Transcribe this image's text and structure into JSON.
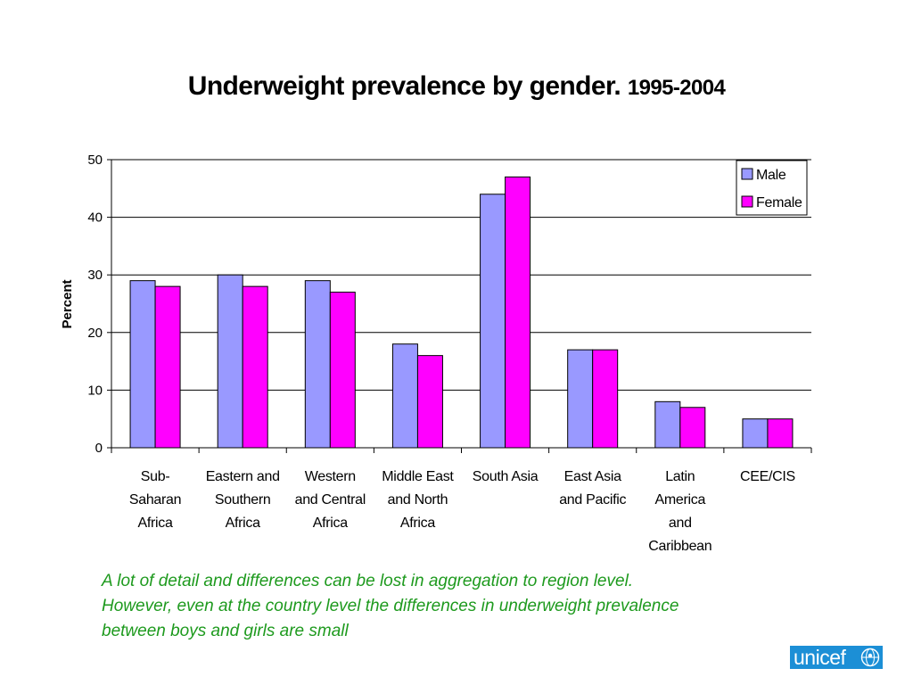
{
  "slide": {
    "title_main": "Underweight prevalence by gender.",
    "title_range": "1995-2004",
    "caption_lines": [
      "A lot of detail and differences can be lost in aggregation to region level.",
      "However, even at the country level the differences in underweight prevalence",
      "between boys and girls are small"
    ],
    "logo_text": "unicef",
    "colors": {
      "caption": "#1e9a1e",
      "logo_bg": "#1c8fd6"
    }
  },
  "chart_data": {
    "type": "bar",
    "title": "Underweight prevalence by gender. 1995-2004",
    "xlabel": "",
    "ylabel": "Percent",
    "ylim": [
      0,
      50
    ],
    "yticks": [
      0,
      10,
      20,
      30,
      40,
      50
    ],
    "grid": true,
    "legend_position": "top-right",
    "categories": [
      [
        "Sub-",
        "Saharan",
        "Africa"
      ],
      [
        "Eastern and",
        "Southern",
        "Africa"
      ],
      [
        "Western",
        "and Central",
        "Africa"
      ],
      [
        "Middle East",
        "and North",
        "Africa"
      ],
      [
        "South Asia"
      ],
      [
        "East Asia",
        "and Pacific"
      ],
      [
        "Latin",
        "America",
        "and",
        "Caribbean"
      ],
      [
        "CEE/CIS"
      ]
    ],
    "series": [
      {
        "name": "Male",
        "color": "#9999ff",
        "values": [
          29,
          30,
          29,
          18,
          44,
          17,
          8,
          5
        ]
      },
      {
        "name": "Female",
        "color": "#ff00ff",
        "values": [
          28,
          28,
          27,
          16,
          47,
          17,
          7,
          5
        ]
      }
    ]
  }
}
